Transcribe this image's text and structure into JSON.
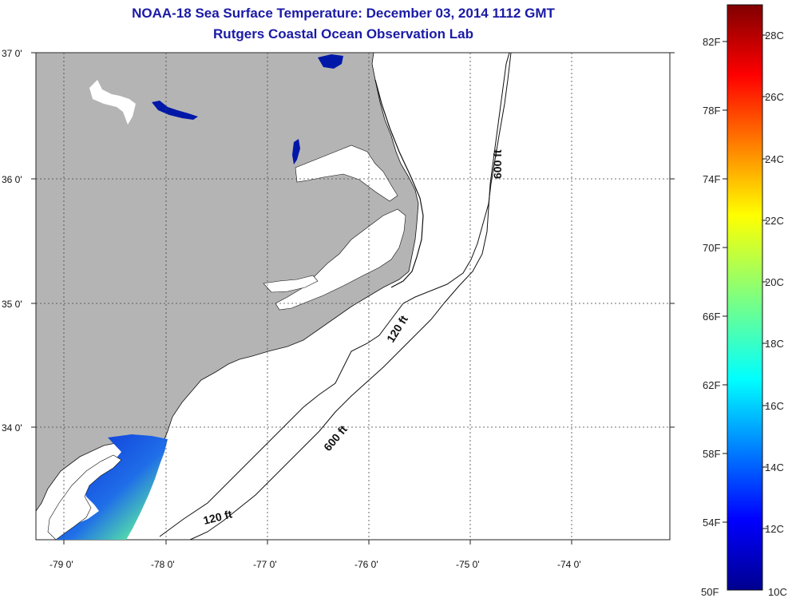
{
  "header": {
    "title": "NOAA-18 Sea Surface Temperature:  December 03, 2014 1112 GMT",
    "subtitle": "Rutgers Coastal Ocean Observation Lab"
  },
  "map": {
    "lat_labels": [
      "37 0'",
      "36 0'",
      "35 0'",
      "34 0'"
    ],
    "lon_labels": [
      "-79 0'",
      "-78 0'",
      "-77 0'",
      "-76 0'",
      "-75 0'",
      "-74 0'"
    ],
    "contour_labels": [
      "600 ft",
      "120 ft",
      "600 ft",
      "120 ft"
    ],
    "colors": {
      "land": "#b4b4b4",
      "water_cold": "#0018a8",
      "grid": "#444444"
    }
  },
  "colorbar": {
    "fahrenheit_labels": [
      "82F",
      "78F",
      "74F",
      "70F",
      "66F",
      "62F",
      "58F",
      "54F",
      "50F"
    ],
    "celsius_labels": [
      "28C",
      "26C",
      "24C",
      "22C",
      "20C",
      "18C",
      "16C",
      "14C",
      "12C",
      "10C"
    ]
  }
}
